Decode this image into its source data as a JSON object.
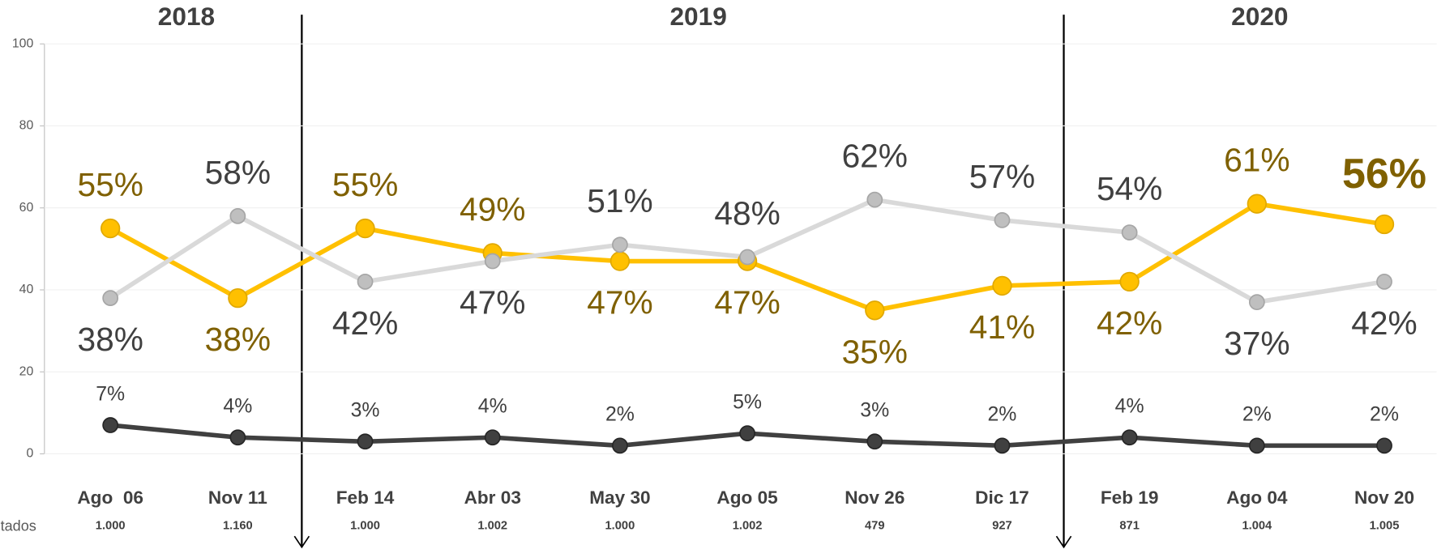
{
  "chart_data": {
    "type": "line",
    "years": [
      "2018",
      "2019",
      "2020"
    ],
    "side_label": "tados",
    "categories": [
      "Ago  06",
      "Nov 11",
      "Feb 14",
      "Abr 03",
      "May 30",
      "Ago 05",
      "Nov 26",
      "Dic 17",
      "Feb 19",
      "Ago 04",
      "Nov 20"
    ],
    "sample_sizes": [
      "1.000",
      "1.160",
      "1.000",
      "1.002",
      "1.000",
      "1.002",
      "479",
      "927",
      "871",
      "1.004",
      "1.005"
    ],
    "series": [
      {
        "color": "#ffc000",
        "label_color": "#7f6000",
        "values": [
          55,
          38,
          55,
          49,
          47,
          47,
          35,
          41,
          42,
          61,
          56
        ],
        "value_labels": [
          "55%",
          "38%",
          "55%",
          "49%",
          "47%",
          "47%",
          "35%",
          "41%",
          "42%",
          "61%",
          "56%"
        ]
      },
      {
        "color": "#d9d9d9",
        "label_color": "#404040",
        "values": [
          38,
          58,
          42,
          47,
          51,
          48,
          62,
          57,
          54,
          37,
          42
        ],
        "value_labels": [
          "38%",
          "58%",
          "42%",
          "47%",
          "51%",
          "48%",
          "62%",
          "57%",
          "54%",
          "37%",
          "42%"
        ]
      },
      {
        "color": "#404040",
        "label_color": "#404040",
        "values": [
          7,
          4,
          3,
          4,
          2,
          5,
          3,
          2,
          4,
          2,
          2
        ],
        "value_labels": [
          "7%",
          "4%",
          "3%",
          "4%",
          "2%",
          "5%",
          "3%",
          "2%",
          "4%",
          "2%",
          "2%"
        ]
      }
    ],
    "ylim": [
      0,
      100
    ],
    "yticks": [
      0,
      20,
      40,
      60,
      80,
      100
    ],
    "grid": true
  }
}
